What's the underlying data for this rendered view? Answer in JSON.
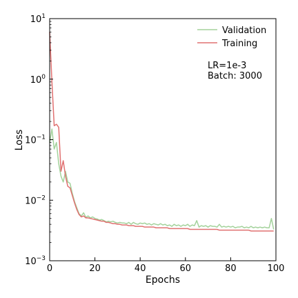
{
  "chart_data": {
    "type": "line",
    "xlabel": "Epochs",
    "ylabel": "Loss",
    "xlim": [
      0,
      100
    ],
    "ylim": [
      0.001,
      10
    ],
    "yscale": "log",
    "grid": false,
    "legend_position": "top-right",
    "xticks": [
      0,
      20,
      40,
      60,
      80,
      100
    ],
    "yticks": [
      {
        "value": 0.001,
        "base": "10",
        "exp": "−3"
      },
      {
        "value": 0.01,
        "base": "10",
        "exp": "−2"
      },
      {
        "value": 0.1,
        "base": "10",
        "exp": "−1"
      },
      {
        "value": 1,
        "base": "10",
        "exp": "0"
      },
      {
        "value": 10,
        "base": "10",
        "exp": "1"
      }
    ],
    "annotations": [
      "LR=1e-3",
      "Batch: 3000"
    ],
    "series": [
      {
        "name": "Validation",
        "color": "#a3d29b",
        "x": [
          0,
          1,
          2,
          3,
          4,
          5,
          6,
          7,
          8,
          9,
          10,
          11,
          12,
          13,
          14,
          15,
          16,
          17,
          18,
          19,
          20,
          21,
          22,
          23,
          24,
          25,
          26,
          27,
          28,
          29,
          30,
          31,
          32,
          33,
          34,
          35,
          36,
          37,
          38,
          39,
          40,
          41,
          42,
          43,
          44,
          45,
          46,
          47,
          48,
          49,
          50,
          51,
          52,
          53,
          54,
          55,
          56,
          57,
          58,
          59,
          60,
          61,
          62,
          63,
          64,
          65,
          66,
          67,
          68,
          69,
          70,
          71,
          72,
          73,
          74,
          75,
          76,
          77,
          78,
          79,
          80,
          81,
          82,
          83,
          84,
          85,
          86,
          87,
          88,
          89,
          90,
          91,
          92,
          93,
          94,
          95,
          96,
          97,
          98,
          99
        ],
        "values": [
          0.09,
          0.15,
          0.07,
          0.09,
          0.04,
          0.025,
          0.02,
          0.03,
          0.02,
          0.019,
          0.013,
          0.0095,
          0.0075,
          0.006,
          0.0055,
          0.0062,
          0.0052,
          0.0055,
          0.0051,
          0.0053,
          0.005,
          0.0049,
          0.0047,
          0.0048,
          0.0046,
          0.0044,
          0.0045,
          0.0044,
          0.0045,
          0.0043,
          0.0042,
          0.0043,
          0.0042,
          0.0042,
          0.0041,
          0.0043,
          0.004,
          0.0043,
          0.0041,
          0.004,
          0.0042,
          0.0041,
          0.0042,
          0.004,
          0.0041,
          0.0039,
          0.0041,
          0.004,
          0.0039,
          0.0041,
          0.0039,
          0.004,
          0.0038,
          0.0039,
          0.0037,
          0.004,
          0.0038,
          0.0039,
          0.0037,
          0.0039,
          0.0038,
          0.004,
          0.0037,
          0.0039,
          0.0038,
          0.0046,
          0.0036,
          0.0038,
          0.0037,
          0.0038,
          0.0036,
          0.0038,
          0.0037,
          0.0037,
          0.0036,
          0.004,
          0.0036,
          0.0037,
          0.0036,
          0.0037,
          0.0036,
          0.0037,
          0.0035,
          0.0036,
          0.0036,
          0.0037,
          0.0035,
          0.0036,
          0.0035,
          0.0037,
          0.0035,
          0.0036,
          0.0035,
          0.0036,
          0.0035,
          0.0036,
          0.0035,
          0.0035,
          0.005,
          0.0033
        ]
      },
      {
        "name": "Training",
        "color": "#e07070",
        "x": [
          0,
          1,
          2,
          3,
          4,
          5,
          6,
          7,
          8,
          9,
          10,
          11,
          12,
          13,
          14,
          15,
          16,
          17,
          18,
          19,
          20,
          21,
          22,
          23,
          24,
          25,
          26,
          27,
          28,
          29,
          30,
          31,
          32,
          33,
          34,
          35,
          36,
          37,
          38,
          39,
          40,
          41,
          42,
          43,
          44,
          45,
          46,
          47,
          48,
          49,
          50,
          51,
          52,
          53,
          54,
          55,
          56,
          57,
          58,
          59,
          60,
          61,
          62,
          63,
          64,
          65,
          66,
          67,
          68,
          69,
          70,
          71,
          72,
          73,
          74,
          75,
          76,
          77,
          78,
          79,
          80,
          81,
          82,
          83,
          84,
          85,
          86,
          87,
          88,
          89,
          90,
          91,
          92,
          93,
          94,
          95,
          96,
          97,
          98,
          99
        ],
        "values": [
          6.0,
          0.9,
          0.17,
          0.18,
          0.16,
          0.03,
          0.045,
          0.025,
          0.017,
          0.016,
          0.012,
          0.009,
          0.007,
          0.0058,
          0.0053,
          0.0055,
          0.0051,
          0.0051,
          0.005,
          0.0049,
          0.0048,
          0.0047,
          0.0046,
          0.0045,
          0.0045,
          0.0043,
          0.0043,
          0.0042,
          0.0041,
          0.0041,
          0.004,
          0.004,
          0.0039,
          0.0039,
          0.0039,
          0.0038,
          0.0038,
          0.0038,
          0.0037,
          0.0037,
          0.0037,
          0.0037,
          0.0036,
          0.0036,
          0.0036,
          0.0036,
          0.0036,
          0.0035,
          0.0035,
          0.0035,
          0.0035,
          0.0035,
          0.0035,
          0.0034,
          0.0034,
          0.0034,
          0.0034,
          0.0034,
          0.0034,
          0.0034,
          0.0034,
          0.0034,
          0.0033,
          0.0033,
          0.0033,
          0.0033,
          0.0033,
          0.0033,
          0.0033,
          0.0033,
          0.0033,
          0.0033,
          0.0033,
          0.0033,
          0.0033,
          0.0032,
          0.0032,
          0.0032,
          0.0032,
          0.0032,
          0.0032,
          0.0032,
          0.0032,
          0.0032,
          0.0032,
          0.0032,
          0.0032,
          0.0032,
          0.0032,
          0.0031,
          0.0031,
          0.0031,
          0.0031,
          0.0031,
          0.0031,
          0.0031,
          0.0031,
          0.0031,
          0.0031,
          0.0031
        ]
      }
    ]
  }
}
